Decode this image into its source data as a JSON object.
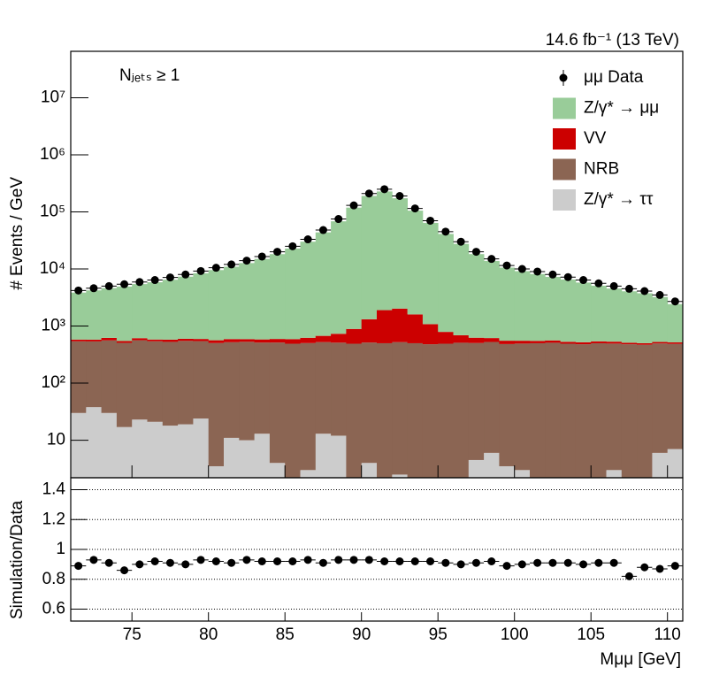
{
  "chart_data": [
    {
      "type": "histogram",
      "stacked": true,
      "log_y": true,
      "legend": "top-right",
      "ylabel": "# Events / GeV",
      "annotations": [
        "14.6 fb⁻¹ (13 TeV)",
        "Nⱼₑₜₛ ≥ 1"
      ],
      "xlim": [
        71,
        111
      ],
      "bins": [
        71,
        72,
        73,
        74,
        75,
        76,
        77,
        78,
        79,
        80,
        81,
        82,
        83,
        84,
        85,
        86,
        87,
        88,
        89,
        90,
        91,
        92,
        93,
        94,
        95,
        96,
        97,
        98,
        99,
        100,
        101,
        102,
        103,
        104,
        105,
        106,
        107,
        108,
        109,
        110,
        111
      ],
      "ylim": [
        2.2,
        65000000
      ],
      "yticks": [
        10,
        {
          "value": 100,
          "label": "10²"
        },
        {
          "value": 1000,
          "label": "10³"
        },
        {
          "value": 10000,
          "label": "10⁴"
        },
        {
          "value": 100000,
          "label": "10⁵"
        },
        {
          "value": 1000000,
          "label": "10⁶"
        },
        {
          "value": 10000000,
          "label": "10⁷"
        }
      ],
      "data": {
        "name": "μμ Data",
        "color": "#000000",
        "values": [
          4200,
          4600,
          5000,
          5400,
          5900,
          6400,
          7100,
          8000,
          9200,
          10500,
          12000,
          14000,
          16500,
          20000,
          25000,
          33000,
          48000,
          75000,
          130000,
          210000,
          250000,
          190000,
          115000,
          70000,
          45000,
          30000,
          20000,
          15000,
          11500,
          10000,
          9000,
          8000,
          7200,
          6400,
          5600,
          5000,
          4500,
          4100,
          3500,
          2700
        ]
      },
      "series": [
        {
          "name": "Z/γ* → ττ",
          "color": "#cccccc",
          "values": [
            30,
            38,
            30,
            17,
            23,
            21,
            18,
            19,
            24,
            3.5,
            11,
            10,
            13,
            4,
            0,
            3,
            13,
            12,
            0,
            4,
            0,
            2.5,
            0,
            0,
            0,
            0,
            4.5,
            6,
            3.5,
            3,
            0,
            0,
            0,
            0,
            0,
            3,
            0,
            0,
            6,
            7
          ]
        },
        {
          "name": "NRB",
          "color": "#8b6553",
          "values": [
            510,
            500,
            530,
            490,
            540,
            520,
            510,
            530,
            520,
            500,
            510,
            520,
            500,
            510,
            490,
            500,
            510,
            500,
            490,
            510,
            500,
            520,
            500,
            480,
            490,
            510,
            500,
            520,
            480,
            490,
            500,
            510,
            490,
            480,
            500,
            490,
            480,
            470,
            490,
            480
          ]
        },
        {
          "name": "VV",
          "color": "#cc0000",
          "values": [
            40,
            40,
            60,
            40,
            50,
            40,
            50,
            50,
            50,
            60,
            70,
            60,
            70,
            80,
            100,
            120,
            150,
            220,
            400,
            800,
            1400,
            1500,
            1100,
            600,
            300,
            180,
            120,
            90,
            70,
            60,
            50,
            50,
            40,
            40,
            40,
            40,
            30,
            30,
            30,
            30
          ]
        },
        {
          "name": "Z/γ* → μμ",
          "color": "#99cc99",
          "values": [
            3270,
            3640,
            4000,
            4360,
            4820,
            5270,
            5900,
            6730,
            7820,
            9000,
            10350,
            12100,
            14400,
            17600,
            22200,
            29400,
            43000,
            67600,
            117800,
            189000,
            226000,
            171000,
            103500,
            63000,
            40300,
            26800,
            17600,
            13200,
            10000,
            8600,
            7600,
            6700,
            6000,
            5250,
            4550,
            4000,
            3550,
            3250,
            2700,
            1900
          ]
        }
      ]
    },
    {
      "type": "points",
      "ylabel": "Simulation/Data",
      "xlabel": "Mμμ [GeV]",
      "xlim": [
        71,
        111
      ],
      "xticks": [
        75,
        80,
        85,
        90,
        95,
        100,
        105,
        110
      ],
      "ylim": [
        0.52,
        1.48
      ],
      "yticks": [
        0.6,
        0.8,
        1,
        1.2,
        1.4
      ],
      "grid": true,
      "color": "#000000",
      "values": [
        0.89,
        0.93,
        0.91,
        0.86,
        0.9,
        0.92,
        0.91,
        0.9,
        0.93,
        0.92,
        0.91,
        0.93,
        0.92,
        0.92,
        0.92,
        0.93,
        0.91,
        0.93,
        0.93,
        0.93,
        0.92,
        0.92,
        0.92,
        0.92,
        0.91,
        0.9,
        0.91,
        0.92,
        0.89,
        0.9,
        0.91,
        0.91,
        0.91,
        0.9,
        0.91,
        0.91,
        0.82,
        0.88,
        0.87,
        0.89
      ]
    }
  ]
}
